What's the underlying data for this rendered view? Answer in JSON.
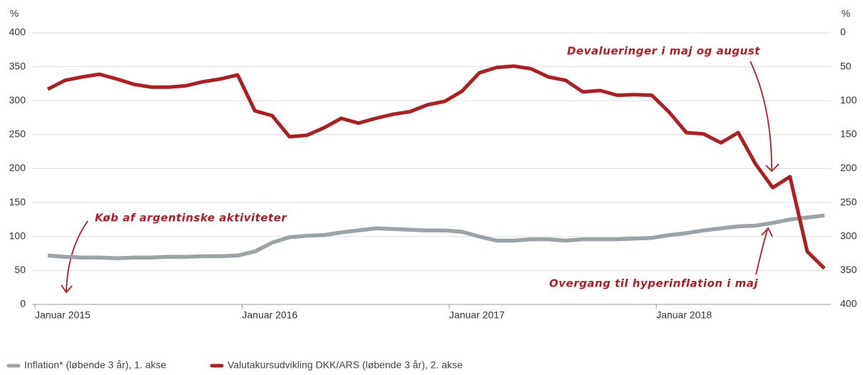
{
  "chart_data": {
    "type": "line",
    "categories": [
      "Januar 2015",
      null,
      null,
      null,
      null,
      null,
      null,
      null,
      null,
      null,
      null,
      null,
      "Januar 2016",
      null,
      null,
      null,
      null,
      null,
      null,
      null,
      null,
      null,
      null,
      null,
      "Januar 2017",
      null,
      null,
      null,
      null,
      null,
      null,
      null,
      null,
      null,
      null,
      null,
      "Januar 2018",
      null,
      null,
      null,
      null,
      null,
      null,
      null,
      null,
      null
    ],
    "series": [
      {
        "name": "Inflation* (løbende 3 år), 1. akse",
        "color": "#9aa3a8",
        "values": [
          72,
          70,
          69,
          69,
          68,
          69,
          69,
          70,
          70,
          71,
          71,
          72,
          78,
          91,
          99,
          101,
          102,
          106,
          109,
          112,
          111,
          110,
          109,
          109,
          107,
          100,
          94,
          94,
          96,
          96,
          94,
          96,
          96,
          96,
          97,
          98,
          102,
          105,
          109,
          112,
          115,
          116,
          120,
          125,
          128,
          131
        ]
      },
      {
        "name": "Valutakursudvikling DKK/ARS (løbende 3 år), 2. akse",
        "color": "#b01e23",
        "axis": "y2",
        "values": [
          83,
          70,
          65,
          61,
          68,
          76,
          80,
          80,
          78,
          72,
          68,
          62,
          115,
          122,
          153,
          151,
          140,
          126,
          133,
          126,
          120,
          116,
          106,
          101,
          86,
          59,
          51,
          49,
          53,
          65,
          70,
          87,
          85,
          92,
          91,
          92,
          117,
          147,
          149,
          162,
          147,
          193,
          228,
          212,
          322,
          347
        ]
      }
    ],
    "y_unit": "%",
    "y2_unit": "%",
    "ylim": [
      0,
      400
    ],
    "yticks": [
      0,
      50,
      100,
      150,
      200,
      250,
      300,
      350,
      400
    ],
    "y2lim": [
      400,
      0
    ],
    "y2ticks": [
      0,
      50,
      100,
      150,
      200,
      250,
      300,
      350,
      400
    ],
    "grid": true,
    "annotations": [
      "Devalueringer i maj og august",
      "Køb af argentinske aktiviteter",
      "Overgang til hyperinflation i maj"
    ]
  }
}
